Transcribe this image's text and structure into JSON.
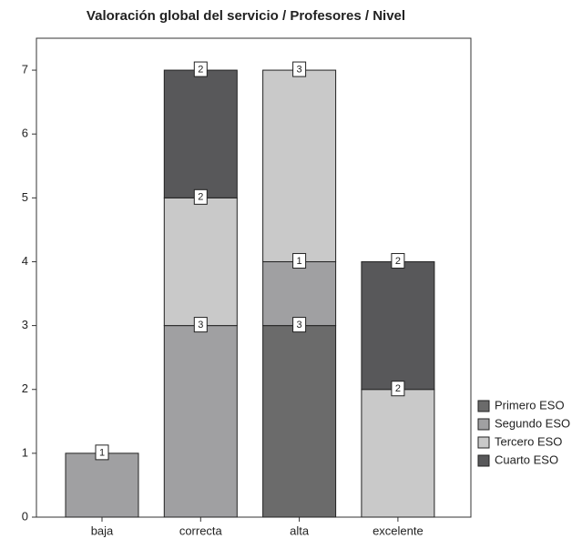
{
  "chart_data": {
    "type": "stacked_bar",
    "title": "Valoración global del servicio / Profesores / Nivel",
    "categories": [
      "baja",
      "correcta",
      "alta",
      "excelente"
    ],
    "series": [
      {
        "name": "Primero ESO",
        "color": "#6b6b6b",
        "values": [
          null,
          null,
          3,
          null
        ]
      },
      {
        "name": "Segundo ESO",
        "color": "#a0a0a2",
        "values": [
          1,
          3,
          1,
          null
        ]
      },
      {
        "name": "Tercero ESO",
        "color": "#c9c9c9",
        "values": [
          null,
          2,
          3,
          2
        ]
      },
      {
        "name": "Cuarto ESO",
        "color": "#58585a",
        "values": [
          null,
          2,
          null,
          2
        ]
      }
    ],
    "ylim": [
      0,
      7.5
    ],
    "yticks": [
      0,
      1,
      2,
      3,
      4,
      5,
      6,
      7
    ],
    "grid": false
  }
}
